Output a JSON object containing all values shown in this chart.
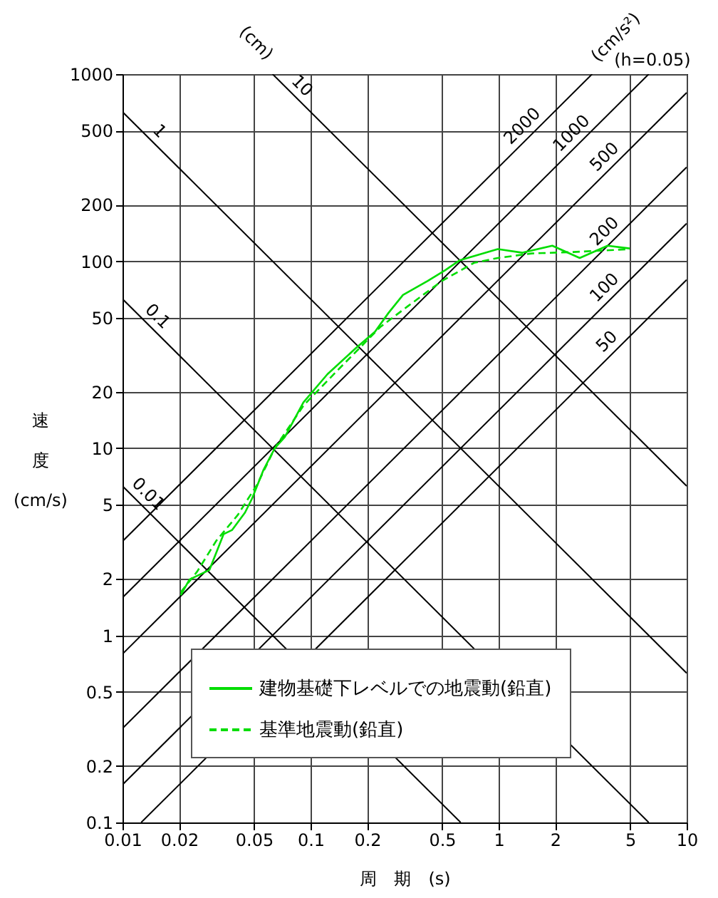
{
  "chart_data": {
    "type": "line",
    "xlabel": "周　期　(s)",
    "ylabel": "速度 (cm/s)",
    "log": "xy",
    "grid": true,
    "legend": "bottom right",
    "xlim": [
      0.01,
      10
    ],
    "ylim": [
      0.1,
      1000
    ],
    "xticks": [
      0.01,
      0.02,
      0.05,
      0.1,
      0.2,
      0.5,
      1,
      2,
      5,
      10
    ],
    "yticks": [
      0.1,
      0.2,
      0.5,
      1,
      2,
      5,
      10,
      20,
      50,
      100,
      200,
      500,
      1000
    ],
    "annotations": [
      "(cm)",
      "(cm/s²)",
      "(h=0.05)"
    ],
    "series": [
      {
        "name": "建物基礎下レベルでの地震動(鉛直)",
        "color": "#00dd00",
        "line_style": "solid",
        "x": [
          0.0204,
          0.0227,
          0.029,
          0.0345,
          0.0383,
          0.0448,
          0.0489,
          0.0563,
          0.0645,
          0.073,
          0.0916,
          0.123,
          0.174,
          0.22,
          0.26,
          0.31,
          0.42,
          0.52,
          0.62,
          0.99,
          1.34,
          1.93,
          2.7,
          3.8,
          4.98
        ],
        "values": [
          1.64,
          1.99,
          2.24,
          3.48,
          3.66,
          4.53,
          5.4,
          7.7,
          10,
          11.5,
          17.6,
          24.9,
          34.3,
          42,
          53,
          66,
          78.5,
          89.5,
          101,
          116,
          111,
          121,
          104,
          121,
          117
        ]
      },
      {
        "name": "基準地震動(鉛直)",
        "color": "#00dd00",
        "line_style": "dashed",
        "x": [
          0.0204,
          0.025,
          0.0315,
          0.041,
          0.052,
          0.0645,
          0.092,
          0.147,
          0.235,
          0.33,
          0.5,
          0.74,
          0.99,
          1.5,
          2.5,
          4.98
        ],
        "values": [
          1.7,
          2.2,
          3.2,
          4.4,
          6.4,
          10,
          17,
          27.6,
          44.5,
          57.6,
          78.5,
          98,
          104,
          110,
          112,
          116
        ]
      },
      {
        "name": "1",
        "color": "#000000",
        "x": [
          0.01,
          10
        ],
        "values": [
          628.3,
          0.6283
        ]
      },
      {
        "name": "10",
        "color": "#000000",
        "x": [
          0.06283,
          10
        ],
        "values": [
          1000,
          6.283
        ]
      },
      {
        "name": "0.1",
        "color": "#000000",
        "x": [
          0.01,
          6.283
        ],
        "values": [
          62.83,
          0.1
        ]
      },
      {
        "name": "0.01",
        "color": "#000000",
        "x": [
          0.01,
          0.6283
        ],
        "values": [
          6.283,
          0.1
        ]
      },
      {
        "name": "2000",
        "color": "#000000",
        "x": [
          0.01,
          3.1416
        ],
        "values": [
          3.183,
          1000
        ]
      },
      {
        "name": "1000",
        "color": "#000000",
        "x": [
          0.01,
          6.283
        ],
        "values": [
          1.592,
          1000
        ]
      },
      {
        "name": "500",
        "color": "#000000",
        "x": [
          0.01,
          10
        ],
        "values": [
          0.7958,
          795.8
        ]
      },
      {
        "name": "200",
        "color": "#000000",
        "x": [
          0.01,
          10
        ],
        "values": [
          0.3183,
          318.3
        ]
      },
      {
        "name": "100",
        "color": "#000000",
        "x": [
          0.01,
          10
        ],
        "values": [
          0.1592,
          159.2
        ]
      },
      {
        "name": "50",
        "color": "#000000",
        "x": [
          0.01257,
          10
        ],
        "values": [
          0.1,
          79.58
        ]
      }
    ]
  }
}
